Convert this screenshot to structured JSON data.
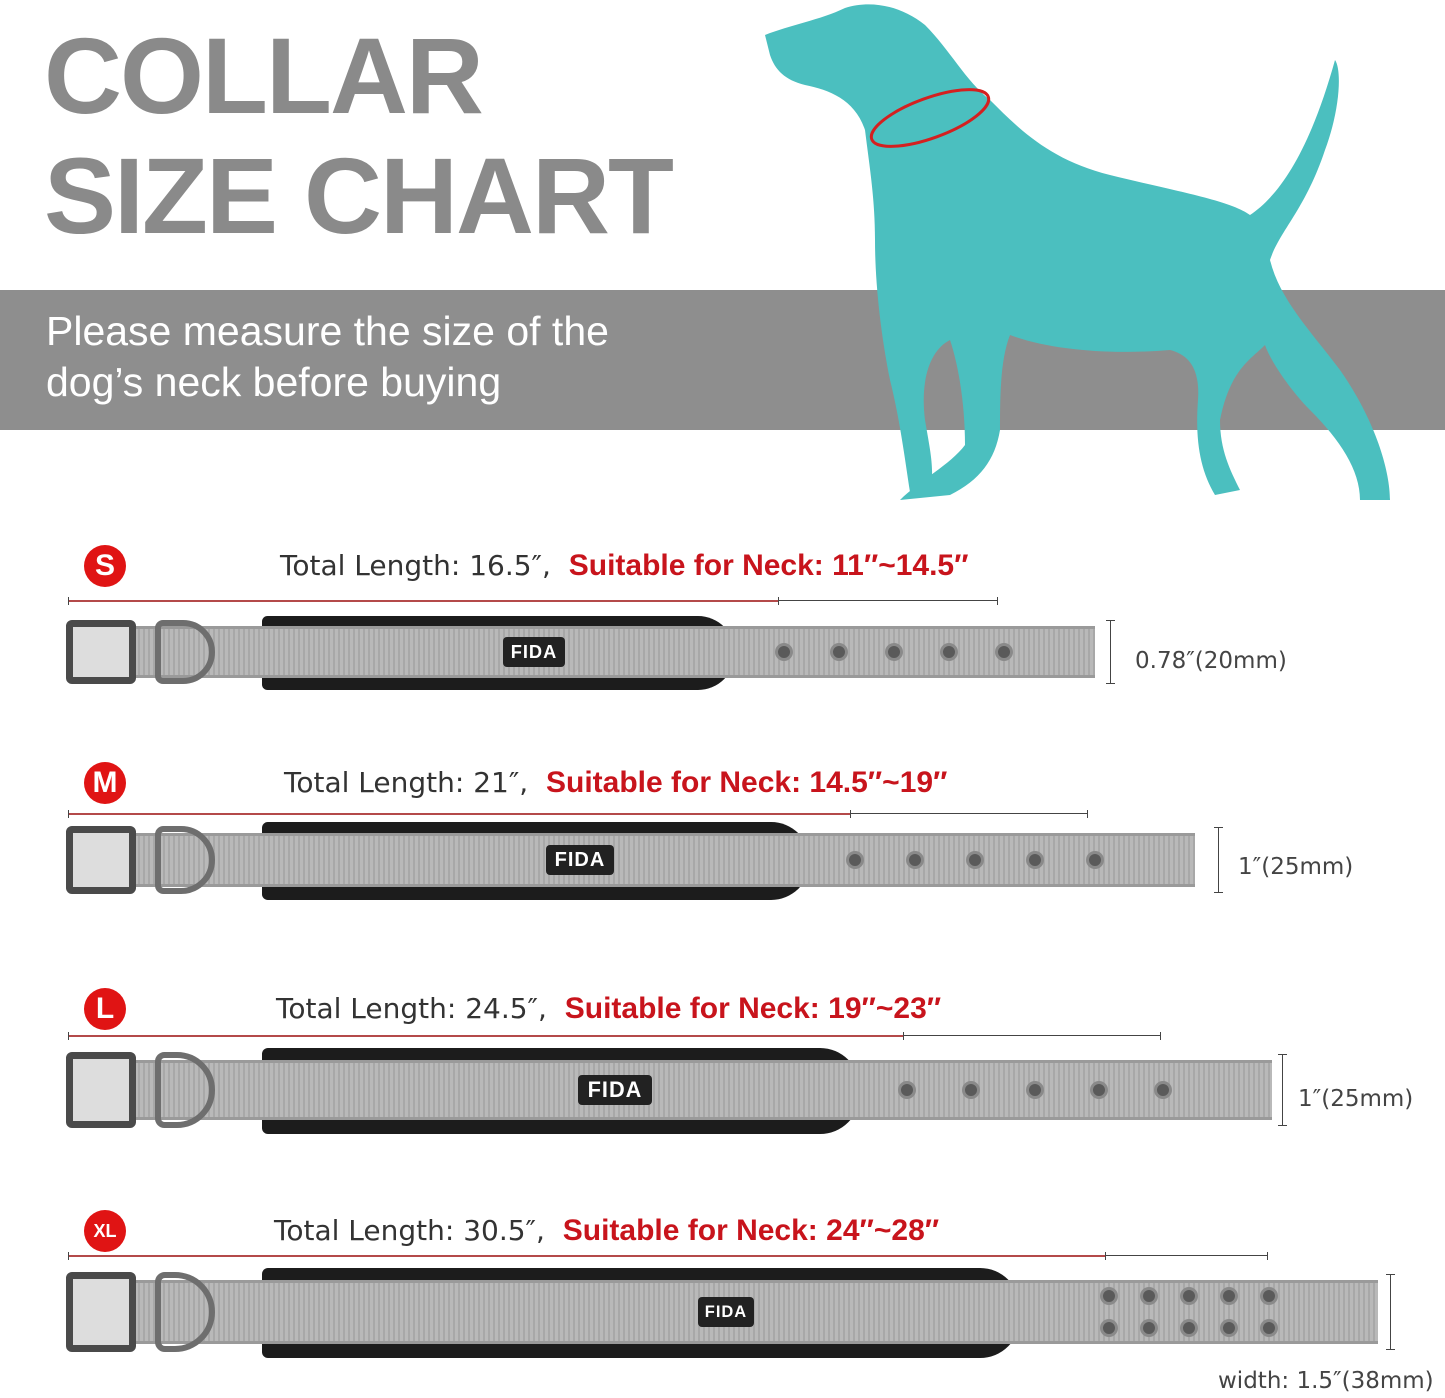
{
  "header": {
    "title_line1": "COLLAR",
    "title_line2": "SIZE CHART",
    "subtitle_line1": "Please measure the size of the",
    "subtitle_line2": "dog’s neck before buying"
  },
  "colors": {
    "dog": "#4bbfbf",
    "neck_ring": "#d42020",
    "band": "#8e8e8e",
    "title": "#8a8a8a",
    "accent_red": "#c8141c"
  },
  "brand": "FIDA",
  "sizes": [
    {
      "label": "S",
      "total_length": "Total Length: 16.5″,",
      "neck": "Suitable for Neck: 11″~14.5″",
      "width": "0.78″(20mm)",
      "holes": 5,
      "hole_rows": 1
    },
    {
      "label": "M",
      "total_length": "Total Length: 21″,",
      "neck": "Suitable for Neck: 14.5″~19″",
      "width": "1″(25mm)",
      "holes": 5,
      "hole_rows": 1
    },
    {
      "label": "L",
      "total_length": "Total Length: 24.5″,",
      "neck": "Suitable for Neck: 19″~23″",
      "width": "1″(25mm)",
      "holes": 5,
      "hole_rows": 1
    },
    {
      "label": "XL",
      "total_length": "Total Length: 30.5″,",
      "neck": "Suitable for Neck: 24″~28″",
      "width": "width: 1.5″(38mm)",
      "holes": 5,
      "hole_rows": 2
    }
  ]
}
